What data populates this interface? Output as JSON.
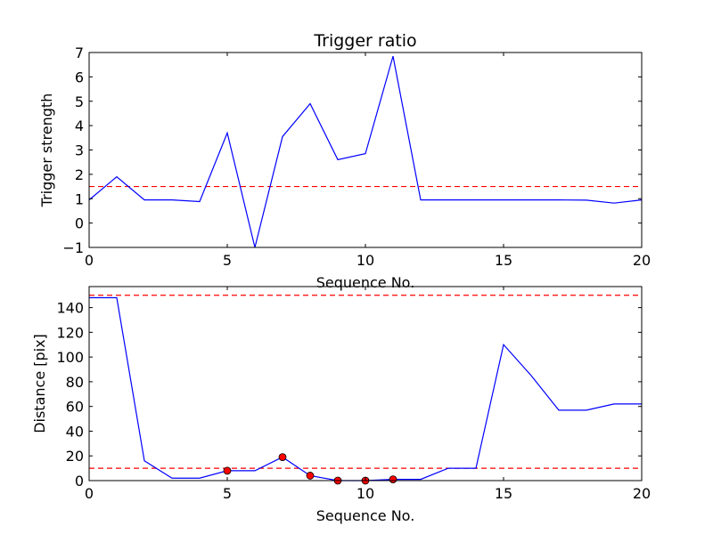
{
  "chart_data": [
    {
      "type": "line",
      "title": "Trigger ratio",
      "xlabel": "Sequence No.",
      "ylabel": "Trigger strength",
      "xlim": [
        0,
        20
      ],
      "ylim": [
        -1,
        7
      ],
      "xticks": [
        0,
        5,
        10,
        15,
        20
      ],
      "yticks": [
        -1,
        0,
        1,
        2,
        3,
        4,
        5,
        6,
        7
      ],
      "xtick_labels": [
        "0",
        "5",
        "10",
        "15",
        "20"
      ],
      "ytick_labels": [
        "−1",
        "0",
        "1",
        "2",
        "3",
        "4",
        "5",
        "6",
        "7"
      ],
      "grid": false,
      "series": [
        {
          "x": [
            0,
            1,
            2,
            3,
            4,
            5,
            6,
            7,
            8,
            9,
            10,
            11,
            12,
            13,
            14,
            15,
            16,
            17,
            18,
            19,
            20
          ],
          "values": [
            0.95,
            1.9,
            0.95,
            0.95,
            0.88,
            3.7,
            -1.0,
            3.55,
            4.9,
            2.6,
            2.85,
            6.85,
            0.95,
            0.95,
            0.95,
            0.95,
            0.95,
            0.95,
            0.94,
            0.82,
            0.95
          ],
          "color": "#0000ff",
          "style": "solid"
        }
      ],
      "hlines": [
        {
          "y": 1.5,
          "color": "#ff0000",
          "style": "dashed"
        }
      ]
    },
    {
      "type": "line",
      "title": "",
      "xlabel": "Sequence No.",
      "ylabel": "Distance [pix]",
      "xlim": [
        0,
        20
      ],
      "ylim": [
        0,
        157
      ],
      "xticks": [
        0,
        5,
        10,
        15,
        20
      ],
      "yticks": [
        0,
        20,
        40,
        60,
        80,
        100,
        120,
        140
      ],
      "xtick_labels": [
        "0",
        "5",
        "10",
        "15",
        "20"
      ],
      "ytick_labels": [
        "0",
        "20",
        "40",
        "60",
        "80",
        "100",
        "120",
        "140"
      ],
      "grid": false,
      "series": [
        {
          "x": [
            0,
            1,
            2,
            3,
            4,
            5,
            6,
            7,
            8,
            9,
            10,
            11,
            12,
            13,
            14,
            15,
            16,
            17,
            18,
            19,
            20
          ],
          "values": [
            148,
            148,
            16,
            2,
            2,
            8,
            8,
            19,
            4,
            0,
            0,
            1,
            1,
            10,
            10,
            110,
            85,
            57,
            57,
            62,
            62
          ],
          "color": "#0000ff",
          "style": "solid"
        }
      ],
      "markers": {
        "x": [
          5,
          7,
          8,
          9,
          10,
          11
        ],
        "values": [
          8,
          19,
          4,
          0,
          0,
          1
        ],
        "color": "#ff0000",
        "edge": "#000000"
      },
      "hlines": [
        {
          "y": 150,
          "color": "#ff0000",
          "style": "dashed"
        },
        {
          "y": 10,
          "color": "#ff0000",
          "style": "dashed"
        }
      ]
    }
  ]
}
